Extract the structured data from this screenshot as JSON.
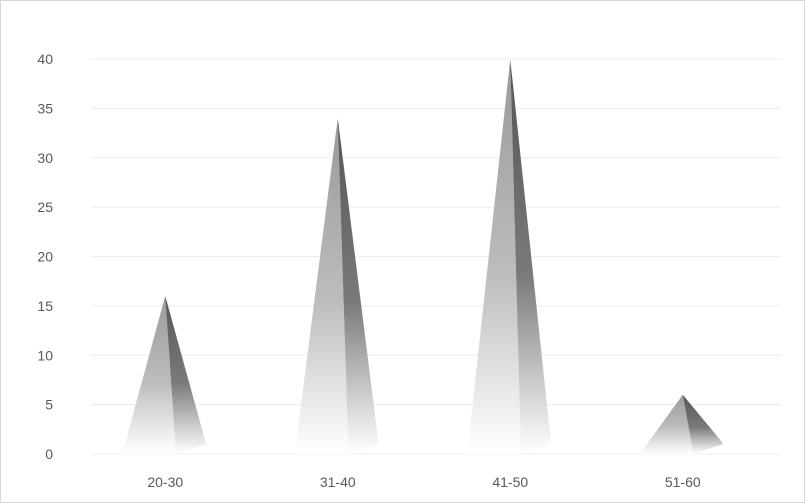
{
  "chart_data": {
    "type": "bar",
    "bar_shape": "pyramid",
    "categories": [
      "20-30",
      "31-40",
      "41-50",
      "51-60"
    ],
    "values": [
      16,
      34,
      40,
      6
    ],
    "ylim": [
      0,
      40
    ],
    "yticks": [
      0,
      5,
      10,
      15,
      20,
      25,
      30,
      35,
      40
    ],
    "grid": true,
    "legend": "none",
    "colors": {
      "bar_light": "#e6e6e6",
      "bar_mid": "#a8a8a8",
      "bar_dark": "#5f5f5f",
      "grid": "#ececec",
      "label": "#595959"
    }
  }
}
